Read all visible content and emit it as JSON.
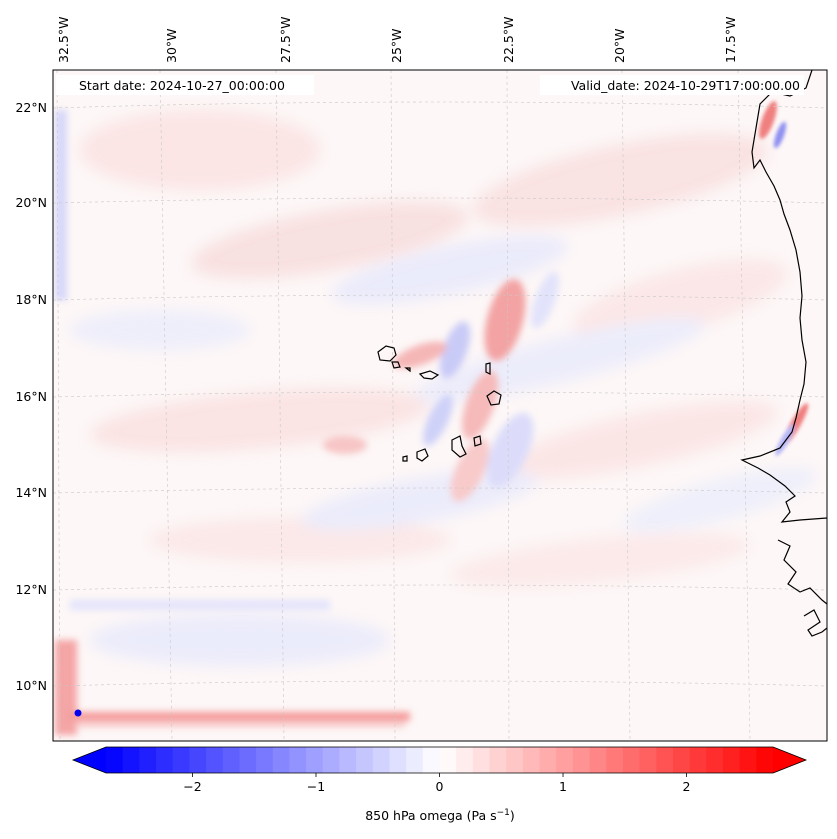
{
  "map": {
    "start_label": "Start date: 2024-10-27_00:00:00",
    "valid_label": "Valid_date: 2024-10-29T17:00:00.00",
    "lon_labels": [
      "32.5°W",
      "30°W",
      "27.5°W",
      "25°W",
      "22.5°W",
      "20°W",
      "17.5°W"
    ],
    "lat_labels": [
      "22°N",
      "20°N",
      "18°N",
      "16°N",
      "14°N",
      "12°N",
      "10°N"
    ],
    "gridlines": true,
    "field": "850 hPa omega",
    "coastline_color": "#000000",
    "features": [
      "Cape Verde islands",
      "West African coast"
    ]
  },
  "colorbar": {
    "label_text": "850 hPa omega (Pa s",
    "label_sup": "−1",
    "label_close": ")",
    "ticks": [
      "−2",
      "−1",
      "0",
      "1",
      "2"
    ],
    "tick_values": [
      -2,
      -1,
      0,
      1,
      2
    ],
    "range": [
      -2.7,
      2.7
    ],
    "extend": "both",
    "cmap": "bwr",
    "colors": {
      "min": "#0000ff",
      "mid": "#ffffff",
      "max": "#ff0000"
    }
  }
}
